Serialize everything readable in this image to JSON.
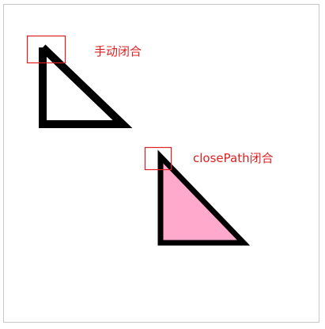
{
  "labels": {
    "manual_close": "手动闭合",
    "closepath_close": "closePath闭合"
  },
  "colors": {
    "stroke": "#000000",
    "fill_closed": "#ffaacc",
    "highlight_box": "#e02020",
    "label_text": "#e02020",
    "canvas_border": "#c8c8c8"
  }
}
